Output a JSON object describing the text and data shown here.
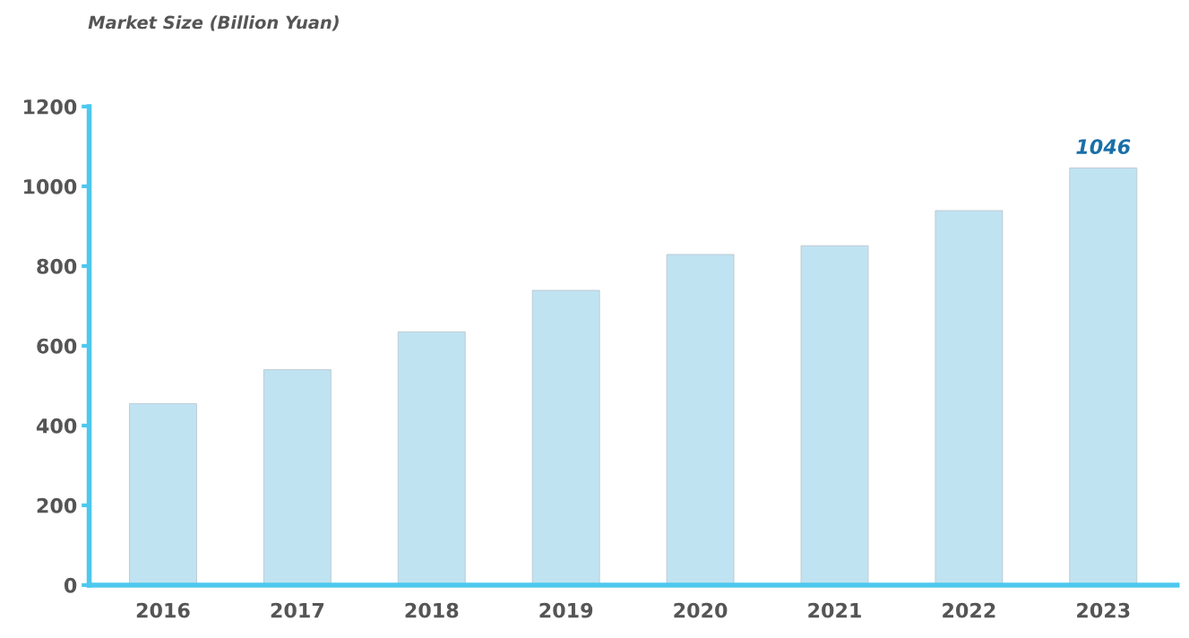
{
  "chart_data": {
    "type": "bar",
    "ylabel": "Market Size (Billion Yuan)",
    "categories": [
      "2016",
      "2017",
      "2018",
      "2019",
      "2020",
      "2021",
      "2022",
      "2023"
    ],
    "values": [
      455,
      540,
      635,
      739,
      829,
      851,
      939,
      1046
    ],
    "value_labels": [
      null,
      null,
      null,
      null,
      null,
      null,
      null,
      "1046"
    ],
    "color": "#c0e3f2",
    "ylim": [
      0,
      1200
    ],
    "yticks": [
      0,
      200,
      400,
      600,
      800,
      1000,
      1200
    ],
    "grid": false
  }
}
